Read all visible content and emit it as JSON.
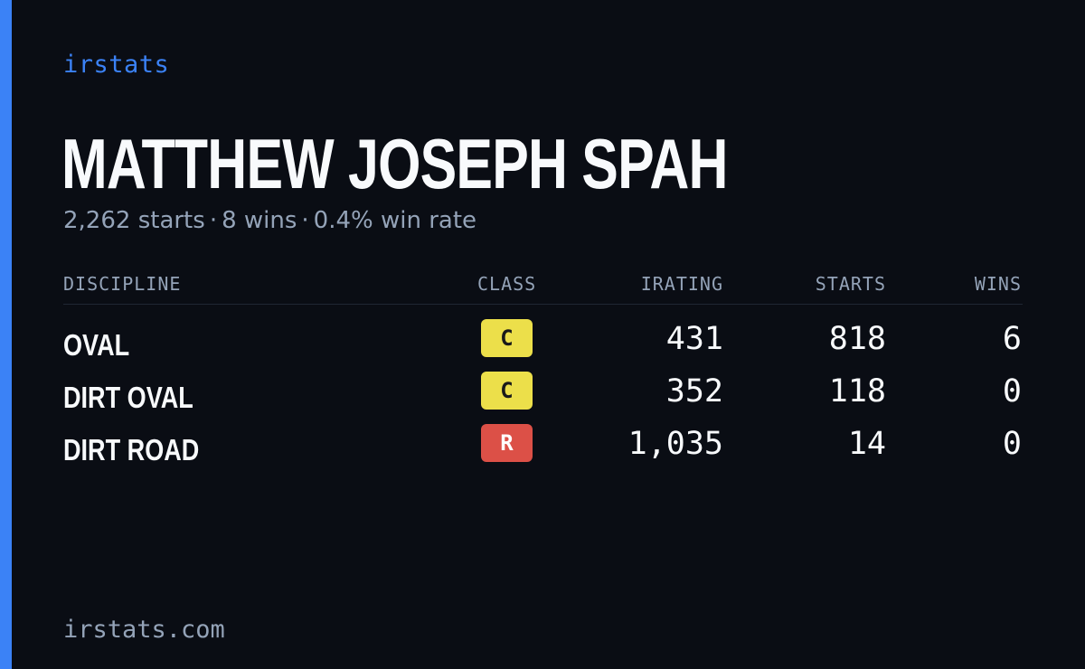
{
  "brand": "irstats",
  "driver": {
    "name": "MATTHEW JOSEPH SPAH",
    "starts_text": "2,262 starts",
    "wins_text": "8 wins",
    "win_rate_text": "0.4% win rate",
    "separator": "·"
  },
  "table": {
    "headers": {
      "discipline": "DISCIPLINE",
      "class": "CLASS",
      "irating": "IRATING",
      "starts": "STARTS",
      "wins": "WINS"
    },
    "rows": [
      {
        "discipline": "OVAL",
        "class": "C",
        "class_color": "#ecdf4a",
        "irating": "431",
        "starts": "818",
        "wins": "6"
      },
      {
        "discipline": "DIRT OVAL",
        "class": "C",
        "class_color": "#ecdf4a",
        "irating": "352",
        "starts": "118",
        "wins": "0"
      },
      {
        "discipline": "DIRT ROAD",
        "class": "R",
        "class_color": "#dc5047",
        "irating": "1,035",
        "starts": "14",
        "wins": "0"
      }
    ]
  },
  "footer": "irstats.com",
  "colors": {
    "accent": "#3b82f6",
    "background": "#0a0d14",
    "muted_text": "#94a3b8",
    "primary_text": "#f8fafc"
  }
}
